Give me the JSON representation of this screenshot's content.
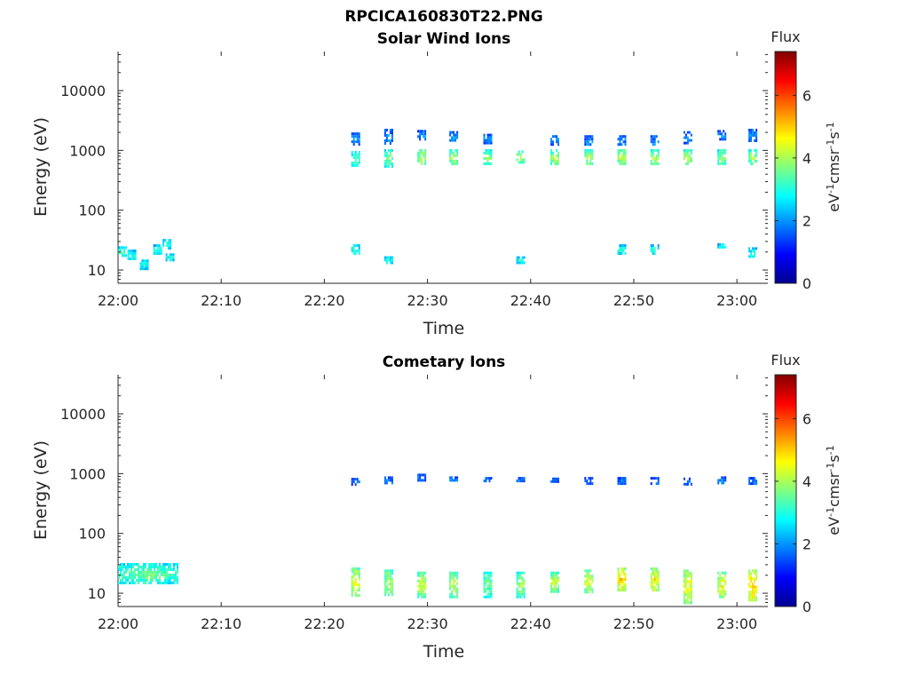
{
  "figure": {
    "title": "RPCICA160830T22.PNG"
  },
  "colors": {
    "colormap": [
      "#00008f",
      "#0000ff",
      "#0080ff",
      "#00ffff",
      "#80ff80",
      "#ffff00",
      "#ff8000",
      "#ff0000",
      "#800000"
    ]
  },
  "chart_data": [
    {
      "type": "heatmap",
      "title": "Solar Wind Ions",
      "xlabel": "Time",
      "ylabel": "Energy (eV)",
      "y_scale": "log",
      "xlim": [
        "22:00",
        "23:03"
      ],
      "ylim": [
        6,
        45000
      ],
      "xticks": [
        "22:00",
        "22:10",
        "22:20",
        "22:30",
        "22:40",
        "22:50",
        "23:00"
      ],
      "yticks": [
        10,
        100,
        1000,
        10000
      ],
      "ytick_labels": [
        "10",
        "100",
        "1000",
        "10000"
      ],
      "colorbar": {
        "title": "Flux",
        "label": "eV-1cm-2sr-1s-1",
        "range": [
          0,
          7.4
        ],
        "ticks": [
          "0",
          "2",
          "4",
          "6"
        ]
      },
      "clusters": [
        {
          "time": "22:00.4",
          "e_lo": 17,
          "e_hi": 25,
          "flux": 3.1
        },
        {
          "time": "22:01.3",
          "e_lo": 15,
          "e_hi": 22,
          "flux": 3.0
        },
        {
          "time": "22:02.5",
          "e_lo": 11,
          "e_hi": 15,
          "flux": 3.0
        },
        {
          "time": "22:03.8",
          "e_lo": 19,
          "e_hi": 27,
          "flux": 3.0
        },
        {
          "time": "22:04.7",
          "e_lo": 24,
          "e_hi": 33,
          "flux": 3.1
        },
        {
          "time": "22:05.0",
          "e_lo": 15,
          "e_hi": 19,
          "flux": 2.9
        },
        {
          "time": "22:23.0",
          "e_lo": 1300,
          "e_hi": 2000,
          "flux": 1.9
        },
        {
          "time": "22:23.0",
          "e_lo": 570,
          "e_hi": 980,
          "flux": 3.3
        },
        {
          "time": "22:23.0",
          "e_lo": 18,
          "e_hi": 27,
          "flux": 3.0
        },
        {
          "time": "22:26.2",
          "e_lo": 1300,
          "e_hi": 2300,
          "flux": 2.0
        },
        {
          "time": "22:26.2",
          "e_lo": 560,
          "e_hi": 1050,
          "flux": 3.5
        },
        {
          "time": "22:26.2",
          "e_lo": 13,
          "e_hi": 17,
          "flux": 3.0
        },
        {
          "time": "22:29.4",
          "e_lo": 1500,
          "e_hi": 2200,
          "flux": 1.9
        },
        {
          "time": "22:29.4",
          "e_lo": 580,
          "e_hi": 1050,
          "flux": 4.0
        },
        {
          "time": "22:32.5",
          "e_lo": 1500,
          "e_hi": 2100,
          "flux": 1.9
        },
        {
          "time": "22:32.5",
          "e_lo": 570,
          "e_hi": 1050,
          "flux": 3.8
        },
        {
          "time": "22:35.8",
          "e_lo": 1300,
          "e_hi": 1900,
          "flux": 1.9
        },
        {
          "time": "22:35.8",
          "e_lo": 570,
          "e_hi": 1050,
          "flux": 3.7
        },
        {
          "time": "22:39.0",
          "e_lo": 620,
          "e_hi": 1000,
          "flux": 3.8
        },
        {
          "time": "22:39.0",
          "e_lo": 13,
          "e_hi": 17,
          "flux": 3.0
        },
        {
          "time": "22:42.3",
          "e_lo": 1300,
          "e_hi": 1800,
          "flux": 1.9
        },
        {
          "time": "22:42.3",
          "e_lo": 570,
          "e_hi": 1050,
          "flux": 4.0
        },
        {
          "time": "22:45.6",
          "e_lo": 1200,
          "e_hi": 1800,
          "flux": 1.9
        },
        {
          "time": "22:45.6",
          "e_lo": 580,
          "e_hi": 1050,
          "flux": 3.9
        },
        {
          "time": "22:48.8",
          "e_lo": 1300,
          "e_hi": 1800,
          "flux": 1.9
        },
        {
          "time": "22:48.8",
          "e_lo": 570,
          "e_hi": 1050,
          "flux": 4.1
        },
        {
          "time": "22:48.8",
          "e_lo": 19,
          "e_hi": 27,
          "flux": 3.0
        },
        {
          "time": "22:52.0",
          "e_lo": 1200,
          "e_hi": 1800,
          "flux": 1.9
        },
        {
          "time": "22:52.0",
          "e_lo": 570,
          "e_hi": 1050,
          "flux": 3.9
        },
        {
          "time": "22:52.0",
          "e_lo": 19,
          "e_hi": 27,
          "flux": 3.0
        },
        {
          "time": "22:55.2",
          "e_lo": 1300,
          "e_hi": 2100,
          "flux": 1.9
        },
        {
          "time": "22:55.2",
          "e_lo": 580,
          "e_hi": 1050,
          "flux": 3.9
        },
        {
          "time": "22:58.5",
          "e_lo": 1500,
          "e_hi": 2200,
          "flux": 1.9
        },
        {
          "time": "22:58.5",
          "e_lo": 580,
          "e_hi": 1050,
          "flux": 3.7
        },
        {
          "time": "22:58.5",
          "e_lo": 24,
          "e_hi": 28,
          "flux": 3.0
        },
        {
          "time": "23:01.5",
          "e_lo": 1500,
          "e_hi": 2300,
          "flux": 1.9
        },
        {
          "time": "23:01.5",
          "e_lo": 620,
          "e_hi": 1050,
          "flux": 3.9
        },
        {
          "time": "23:01.5",
          "e_lo": 16,
          "e_hi": 24,
          "flux": 3.0
        }
      ]
    },
    {
      "type": "heatmap",
      "title": "Cometary Ions",
      "xlabel": "Time",
      "ylabel": "Energy (eV)",
      "y_scale": "log",
      "xlim": [
        "22:00",
        "23:03"
      ],
      "ylim": [
        6,
        45000
      ],
      "xticks": [
        "22:00",
        "22:10",
        "22:20",
        "22:30",
        "22:40",
        "22:50",
        "23:00"
      ],
      "yticks": [
        10,
        100,
        1000,
        10000
      ],
      "ytick_labels": [
        "10",
        "100",
        "1000",
        "10000"
      ],
      "colorbar": {
        "title": "Flux",
        "label": "eV-1cm-2sr-1s-1",
        "range": [
          0,
          7.4
        ],
        "ticks": [
          "0",
          "2",
          "4",
          "6"
        ]
      },
      "clusters": [
        {
          "time_start": "22:00",
          "time_end": "22:05.8",
          "e_lo": 15,
          "e_hi": 32,
          "flux": 3.4
        },
        {
          "time": "22:23.0",
          "e_lo": 680,
          "e_hi": 850,
          "flux": 1.8
        },
        {
          "time": "22:23.0",
          "e_lo": 9,
          "e_hi": 27,
          "flux": 4.3
        },
        {
          "time": "22:26.2",
          "e_lo": 680,
          "e_hi": 900,
          "flux": 1.8
        },
        {
          "time": "22:26.2",
          "e_lo": 9,
          "e_hi": 25,
          "flux": 4.0
        },
        {
          "time": "22:29.4",
          "e_lo": 780,
          "e_hi": 1000,
          "flux": 1.8
        },
        {
          "time": "22:29.4",
          "e_lo": 9,
          "e_hi": 23,
          "flux": 4.2
        },
        {
          "time": "22:32.5",
          "e_lo": 750,
          "e_hi": 900,
          "flux": 1.8
        },
        {
          "time": "22:32.5",
          "e_lo": 9,
          "e_hi": 23,
          "flux": 4.0
        },
        {
          "time": "22:35.8",
          "e_lo": 730,
          "e_hi": 880,
          "flux": 1.8
        },
        {
          "time": "22:35.8",
          "e_lo": 9,
          "e_hi": 23,
          "flux": 3.5
        },
        {
          "time": "22:39.0",
          "e_lo": 720,
          "e_hi": 880,
          "flux": 1.8
        },
        {
          "time": "22:39.0",
          "e_lo": 9,
          "e_hi": 23,
          "flux": 3.8
        },
        {
          "time": "22:42.3",
          "e_lo": 740,
          "e_hi": 860,
          "flux": 1.8
        },
        {
          "time": "22:42.3",
          "e_lo": 11,
          "e_hi": 23,
          "flux": 4.2
        },
        {
          "time": "22:45.6",
          "e_lo": 700,
          "e_hi": 880,
          "flux": 1.8
        },
        {
          "time": "22:45.6",
          "e_lo": 11,
          "e_hi": 25,
          "flux": 4.3
        },
        {
          "time": "22:48.8",
          "e_lo": 680,
          "e_hi": 880,
          "flux": 1.8
        },
        {
          "time": "22:48.8",
          "e_lo": 11,
          "e_hi": 27,
          "flux": 4.9
        },
        {
          "time": "22:52.0",
          "e_lo": 680,
          "e_hi": 880,
          "flux": 1.8
        },
        {
          "time": "22:52.0",
          "e_lo": 11,
          "e_hi": 27,
          "flux": 4.6
        },
        {
          "time": "22:55.2",
          "e_lo": 700,
          "e_hi": 860,
          "flux": 1.8
        },
        {
          "time": "22:55.2",
          "e_lo": 7,
          "e_hi": 25,
          "flux": 4.5
        },
        {
          "time": "22:58.5",
          "e_lo": 700,
          "e_hi": 900,
          "flux": 1.8
        },
        {
          "time": "22:58.5",
          "e_lo": 9,
          "e_hi": 23,
          "flux": 4.4
        },
        {
          "time": "23:01.5",
          "e_lo": 680,
          "e_hi": 880,
          "flux": 1.8
        },
        {
          "time": "23:01.5",
          "e_lo": 8,
          "e_hi": 25,
          "flux": 5.0
        }
      ]
    }
  ]
}
